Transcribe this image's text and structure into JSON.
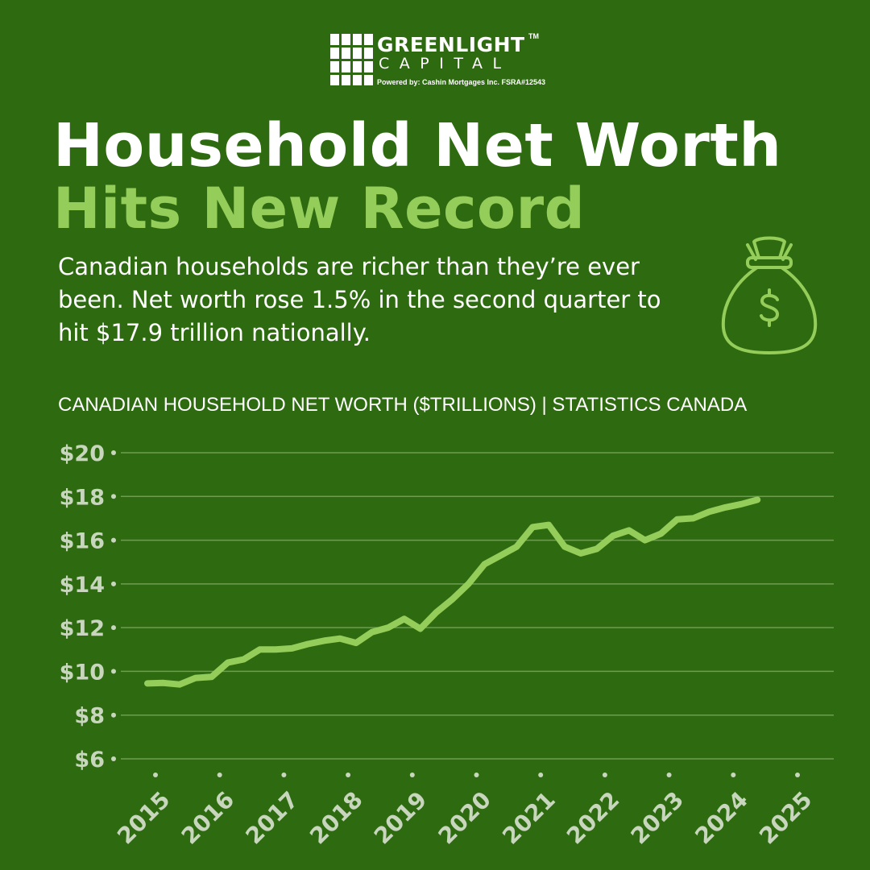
{
  "brand": {
    "name_line1": "GREENLIGHT",
    "trademark": "TM",
    "name_line2": "CAPITAL",
    "powered_by": "Powered by:  Cashin Mortgages Inc.  FSRA#12543"
  },
  "headline": {
    "line1": "Household Net Worth",
    "line2": "Hits New Record"
  },
  "subtitle": "Canadian households are richer than they’re ever been. Net worth rose 1.5% in the second quarter to hit $17.9 trillion nationally.",
  "icon": "money-bag-icon",
  "colors": {
    "background": "#2e6b10",
    "accent": "#94cd5a",
    "line": "#94cd5a",
    "text": "#ffffff",
    "grid": "#6f9d4f"
  },
  "chart_data": {
    "type": "line",
    "title": "CANADIAN HOUSEHOLD NET WORTH ($TRILLIONS) | STATISTICS CANADA",
    "xlabel": "",
    "ylabel": "",
    "ylim": [
      6,
      20
    ],
    "yticks": [
      6,
      8,
      10,
      12,
      14,
      16,
      18,
      20
    ],
    "ytick_labels": [
      "$6",
      "$8",
      "$10",
      "$12",
      "$14",
      "$16",
      "$18",
      "$20"
    ],
    "xticks": [
      2015,
      2016,
      2017,
      2018,
      2019,
      2020,
      2021,
      2022,
      2023,
      2024,
      2025
    ],
    "xtick_labels": [
      "2015",
      "2016",
      "2017",
      "2018",
      "2019",
      "2020",
      "2021",
      "2022",
      "2023",
      "2024",
      "2025"
    ],
    "grid": true,
    "series": [
      {
        "values": [
          [
            2014.875,
            9.45
          ],
          [
            2015.125,
            9.47
          ],
          [
            2015.375,
            9.4
          ],
          [
            2015.625,
            9.7
          ],
          [
            2015.875,
            9.75
          ],
          [
            2016.125,
            10.4
          ],
          [
            2016.375,
            10.55
          ],
          [
            2016.625,
            11.0
          ],
          [
            2016.875,
            11.0
          ],
          [
            2017.125,
            11.05
          ],
          [
            2017.375,
            11.25
          ],
          [
            2017.625,
            11.4
          ],
          [
            2017.875,
            11.5
          ],
          [
            2018.125,
            11.3
          ],
          [
            2018.375,
            11.8
          ],
          [
            2018.625,
            12.0
          ],
          [
            2018.875,
            12.4
          ],
          [
            2019.125,
            11.95
          ],
          [
            2019.375,
            12.7
          ],
          [
            2019.625,
            13.3
          ],
          [
            2019.875,
            14.0
          ],
          [
            2020.125,
            14.9
          ],
          [
            2020.375,
            15.3
          ],
          [
            2020.625,
            15.7
          ],
          [
            2020.875,
            16.6
          ],
          [
            2021.125,
            16.7
          ],
          [
            2021.375,
            15.7
          ],
          [
            2021.625,
            15.4
          ],
          [
            2021.875,
            15.6
          ],
          [
            2022.125,
            16.2
          ],
          [
            2022.375,
            16.45
          ],
          [
            2022.625,
            16.0
          ],
          [
            2022.875,
            16.3
          ],
          [
            2023.125,
            16.95
          ],
          [
            2023.375,
            17.0
          ],
          [
            2023.625,
            17.3
          ],
          [
            2023.875,
            17.5
          ],
          [
            2024.125,
            17.65
          ],
          [
            2024.375,
            17.85
          ]
        ]
      }
    ]
  }
}
